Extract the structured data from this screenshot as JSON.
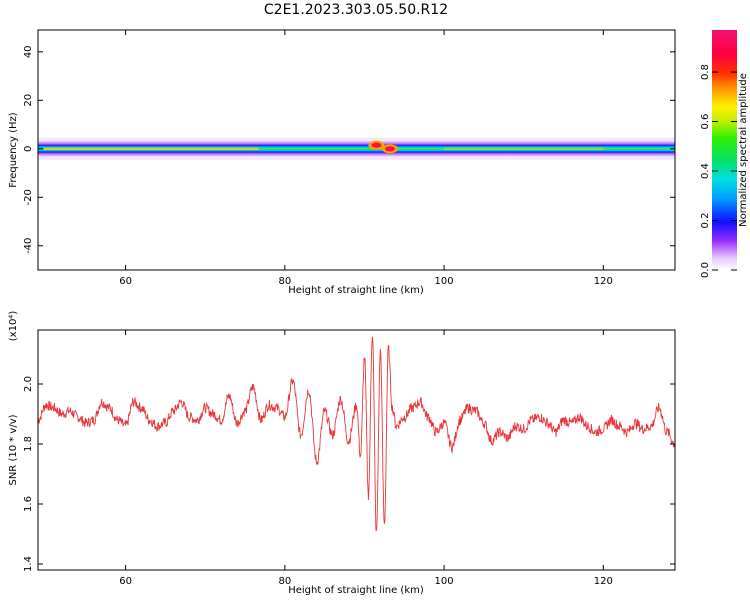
{
  "title": "C2E1.2023.303.05.50.R12",
  "chart_data": [
    {
      "type": "heatmap",
      "title": "C2E1.2023.303.05.50.R12",
      "xlabel": "Height of straight line (km)",
      "ylabel": "Frequency (Hz)",
      "xlim": [
        49,
        129
      ],
      "ylim": [
        -50,
        49
      ],
      "xticks": [
        "60",
        "80",
        "100",
        "120"
      ],
      "yticks": [
        "-40",
        "-20",
        "0",
        "20",
        "40"
      ],
      "colorbar": {
        "label": "Normalized spectral amplitude",
        "range": [
          0,
          0.97
        ],
        "ticks": [
          "0.0",
          "0.2",
          "0.4",
          "0.6",
          "0.8"
        ],
        "colormap": "rainbow"
      },
      "ridge": {
        "frequency_hz": 0,
        "x_start": 49,
        "x_end": 129,
        "peak_x": [
          91.5,
          93.2
        ],
        "peak_frequency_hz": [
          1.5,
          0
        ]
      }
    },
    {
      "type": "line",
      "xlabel": "Height of straight line (km)",
      "ylabel": "SNR (10 * v/v)",
      "yscale_label": "(x10⁴)",
      "xlim": [
        49,
        129
      ],
      "ylim": [
        1.38,
        2.18
      ],
      "xticks": [
        "60",
        "80",
        "100",
        "120"
      ],
      "yticks": [
        "1.4",
        "1.6",
        "1.8",
        "2.0"
      ],
      "color": "#e8373a",
      "series": [
        {
          "x": [
            49,
            50,
            51,
            52,
            53,
            54,
            55,
            56,
            57,
            58,
            59,
            60,
            61,
            62,
            63,
            64,
            65,
            66,
            67,
            68,
            69,
            70,
            71,
            72,
            73,
            74,
            75,
            76,
            77,
            78,
            79,
            80,
            81,
            82,
            83,
            84,
            85,
            86,
            87,
            88,
            89,
            89.5,
            90,
            90.5,
            91,
            91.5,
            92,
            92.5,
            93,
            93.5,
            94,
            95,
            96,
            97,
            98,
            99,
            100,
            101,
            102,
            103,
            104,
            105,
            106,
            107,
            108,
            109,
            110,
            111,
            112,
            113,
            114,
            115,
            116,
            117,
            118,
            119,
            120,
            121,
            122,
            123,
            124,
            125,
            126,
            127,
            128,
            129
          ],
          "y": [
            1.88,
            1.93,
            1.92,
            1.9,
            1.91,
            1.89,
            1.87,
            1.88,
            1.94,
            1.92,
            1.88,
            1.86,
            1.94,
            1.92,
            1.88,
            1.86,
            1.87,
            1.91,
            1.94,
            1.89,
            1.88,
            1.92,
            1.9,
            1.88,
            1.96,
            1.87,
            1.91,
            1.99,
            1.88,
            1.93,
            1.92,
            1.89,
            2.01,
            1.83,
            1.98,
            1.74,
            1.91,
            1.83,
            1.95,
            1.81,
            1.93,
            1.76,
            2.09,
            1.63,
            2.17,
            1.5,
            2.11,
            1.53,
            2.12,
            1.92,
            1.86,
            1.89,
            1.92,
            1.94,
            1.89,
            1.84,
            1.87,
            1.79,
            1.88,
            1.92,
            1.91,
            1.87,
            1.81,
            1.84,
            1.82,
            1.86,
            1.85,
            1.88,
            1.89,
            1.87,
            1.84,
            1.88,
            1.87,
            1.89,
            1.86,
            1.84,
            1.85,
            1.88,
            1.86,
            1.84,
            1.87,
            1.85,
            1.86,
            1.92,
            1.84,
            1.8
          ]
        }
      ]
    }
  ]
}
